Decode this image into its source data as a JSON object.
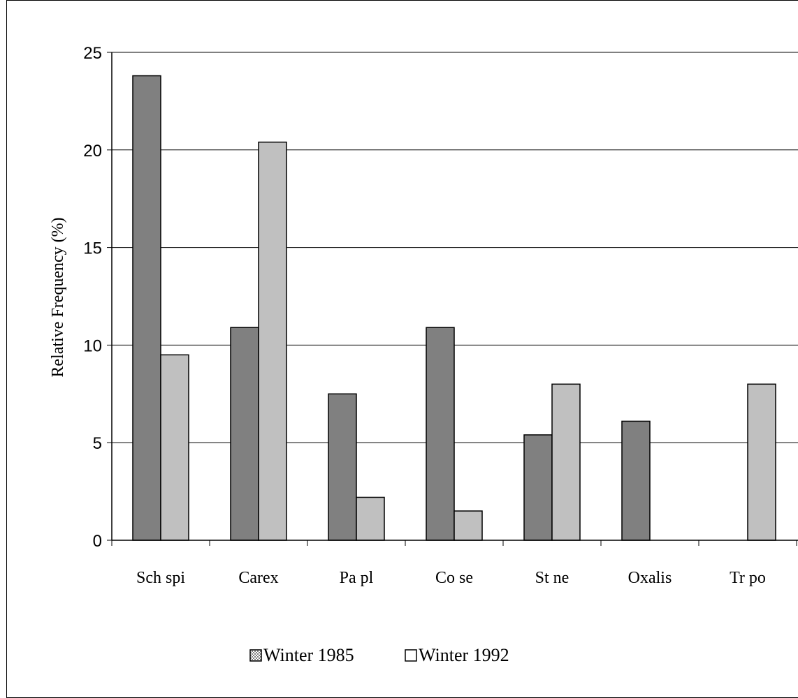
{
  "chart_data": {
    "type": "bar",
    "ylabel": "Relative Frequency (%)",
    "xlabel": "",
    "ylim": [
      0,
      25
    ],
    "yticks": [
      0,
      5,
      10,
      15,
      20,
      25
    ],
    "grid": true,
    "legend_position": "bottom",
    "categories": [
      "Sch spi",
      "Carex",
      "Pa pl",
      "Co se",
      "St ne",
      "Oxalis",
      "Tr po"
    ],
    "series": [
      {
        "name": "Winter 1985",
        "color": "#808080",
        "values": [
          23.8,
          10.9,
          7.5,
          10.9,
          5.4,
          6.1,
          0
        ]
      },
      {
        "name": "Winter 1992",
        "color": "#c0c0c0",
        "values": [
          9.5,
          20.4,
          2.2,
          1.5,
          8.0,
          0,
          8.0
        ]
      }
    ]
  }
}
